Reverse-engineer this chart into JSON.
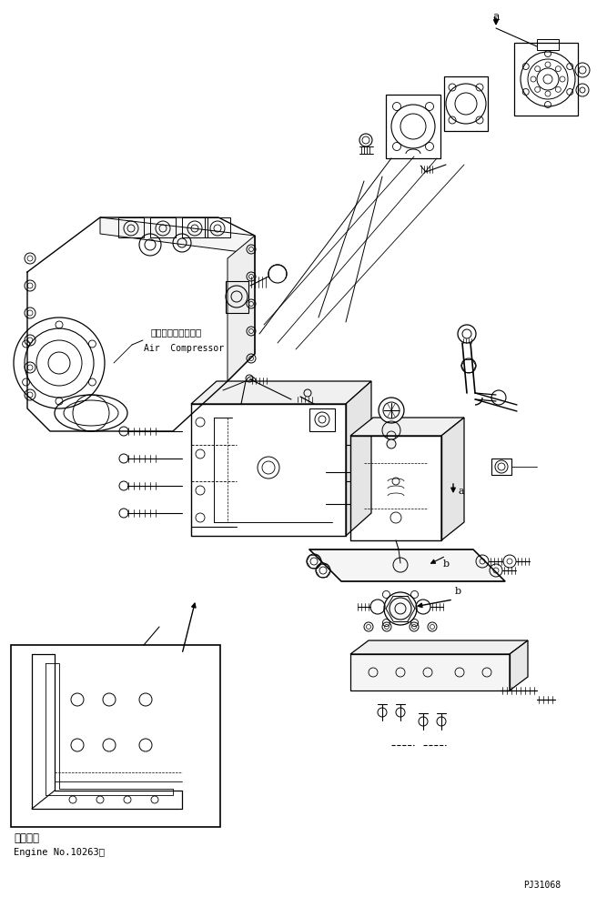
{
  "bg_color": "#ffffff",
  "fig_width": 6.67,
  "fig_height": 9.87,
  "dpi": 100,
  "text_label_japanese": "適用号機",
  "text_label_engine": "Engine No.10263～",
  "text_air_compressor_jp": "エアーコンプレッサ",
  "text_air_compressor_en": "Air  Compressor",
  "part_number": "PJ31068",
  "label_a_top": "a",
  "label_a_mid": "a",
  "label_b1": "b",
  "label_b2": "b",
  "line_color": "#000000",
  "line_width": 0.7
}
